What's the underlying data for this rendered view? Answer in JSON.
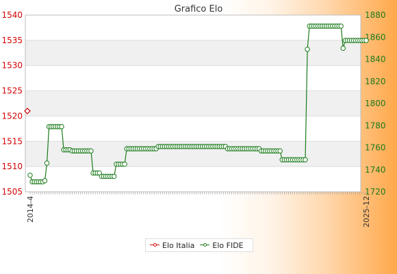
{
  "chart_data": {
    "type": "line",
    "title": "Grafico Elo",
    "y_left": {
      "min": 1505,
      "max": 1540,
      "ticks": [
        1505,
        1510,
        1515,
        1520,
        1525,
        1530,
        1535,
        1540
      ],
      "color": "#d40000"
    },
    "y_right": {
      "min": 1720,
      "max": 1880,
      "ticks": [
        1720,
        1740,
        1760,
        1780,
        1800,
        1820,
        1840,
        1860,
        1880
      ],
      "color": "#1a7a1a"
    },
    "grid": true,
    "legend_position": "bottom",
    "x_start_label": "2014-4",
    "x_end_label": "2025-12",
    "series": [
      {
        "name": "Elo Italia",
        "axis": "left",
        "color": "#d40000",
        "values": [
          1521
        ]
      },
      {
        "name": "Elo FIDE",
        "axis": "right",
        "color": "#1a7a1a",
        "values": [
          1735,
          1729,
          1729,
          1729,
          1729,
          1729,
          1729,
          1730,
          1746,
          1779,
          1779,
          1779,
          1779,
          1779,
          1779,
          1779,
          1758,
          1758,
          1758,
          1758,
          1757,
          1757,
          1757,
          1757,
          1757,
          1757,
          1757,
          1757,
          1757,
          1757,
          1737,
          1737,
          1737,
          1737,
          1734,
          1734,
          1734,
          1734,
          1734,
          1734,
          1734,
          1745,
          1745,
          1745,
          1745,
          1745,
          1759,
          1759,
          1759,
          1759,
          1759,
          1759,
          1759,
          1759,
          1759,
          1759,
          1759,
          1759,
          1759,
          1759,
          1759,
          1761,
          1761,
          1761,
          1761,
          1761,
          1761,
          1761,
          1761,
          1761,
          1761,
          1761,
          1761,
          1761,
          1761,
          1761,
          1761,
          1761,
          1761,
          1761,
          1761,
          1761,
          1761,
          1761,
          1761,
          1761,
          1761,
          1761,
          1761,
          1761,
          1761,
          1761,
          1761,
          1761,
          1759,
          1759,
          1759,
          1759,
          1759,
          1759,
          1759,
          1759,
          1759,
          1759,
          1759,
          1759,
          1759,
          1759,
          1759,
          1759,
          1757,
          1757,
          1757,
          1757,
          1757,
          1757,
          1757,
          1757,
          1757,
          1757,
          1749,
          1749,
          1749,
          1749,
          1749,
          1749,
          1749,
          1749,
          1749,
          1749,
          1749,
          1749,
          1849,
          1870,
          1870,
          1870,
          1870,
          1870,
          1870,
          1870,
          1870,
          1870,
          1870,
          1870,
          1870,
          1870,
          1870,
          1870,
          1870,
          1850,
          1857,
          1857,
          1857,
          1857,
          1857,
          1857,
          1857,
          1857,
          1857,
          1857,
          1857
        ]
      }
    ]
  }
}
